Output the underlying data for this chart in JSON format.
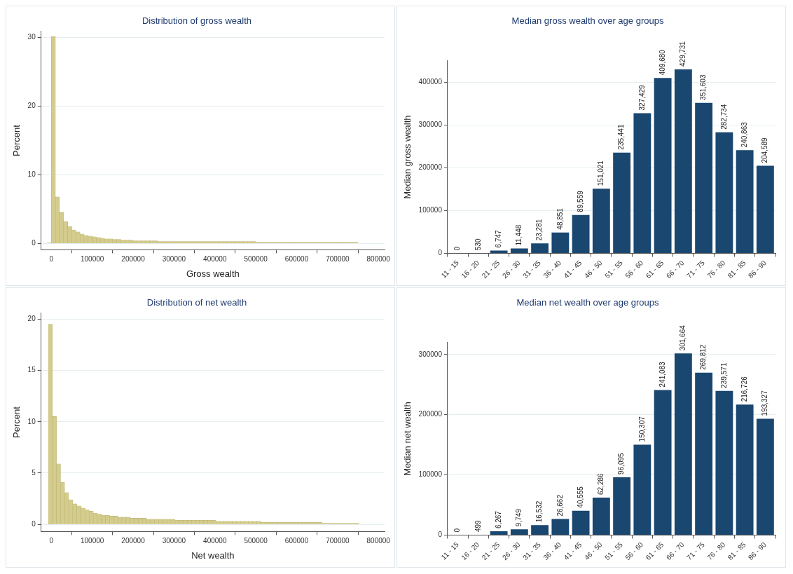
{
  "chart_data": [
    {
      "type": "histogram",
      "title": "Distribution of gross wealth",
      "xlabel": "Gross wealth",
      "ylabel": "Percent",
      "color": "#d4cc8c",
      "bins": [
        -10000,
        0,
        10000,
        20000,
        30000,
        40000,
        50000,
        60000,
        70000,
        80000,
        90000,
        100000,
        110000,
        120000,
        130000,
        140000,
        150000,
        160000,
        170000,
        180000,
        190000,
        200000,
        210000,
        220000,
        230000,
        240000,
        250000,
        260000,
        270000,
        280000,
        290000,
        300000,
        310000,
        320000,
        330000,
        340000,
        350000,
        360000,
        370000,
        380000,
        390000,
        400000,
        410000,
        420000,
        430000,
        440000,
        450000,
        460000,
        470000,
        480000,
        490000,
        500000,
        510000,
        520000,
        530000,
        540000,
        550000,
        560000,
        570000,
        580000,
        590000,
        600000,
        610000,
        620000,
        630000,
        640000,
        650000,
        660000,
        670000,
        680000,
        690000,
        700000,
        710000,
        720000,
        730000,
        740000,
        750000
      ],
      "values": [
        0.1,
        30.1,
        6.8,
        4.5,
        3.2,
        2.5,
        2.0,
        1.7,
        1.4,
        1.2,
        1.1,
        1.0,
        0.9,
        0.8,
        0.7,
        0.7,
        0.6,
        0.6,
        0.5,
        0.5,
        0.5,
        0.4,
        0.4,
        0.4,
        0.4,
        0.4,
        0.4,
        0.3,
        0.3,
        0.3,
        0.3,
        0.3,
        0.3,
        0.3,
        0.3,
        0.3,
        0.3,
        0.3,
        0.3,
        0.3,
        0.3,
        0.3,
        0.3,
        0.3,
        0.3,
        0.3,
        0.3,
        0.3,
        0.3,
        0.3,
        0.3,
        0.2,
        0.2,
        0.2,
        0.2,
        0.2,
        0.2,
        0.2,
        0.2,
        0.2,
        0.2,
        0.2,
        0.2,
        0.2,
        0.2,
        0.2,
        0.2,
        0.2,
        0.2,
        0.2,
        0.2,
        0.2,
        0.2,
        0.2,
        0.2,
        0.2
      ],
      "xlim": [
        -25000,
        815000
      ],
      "xticks": [
        0,
        100000,
        200000,
        300000,
        400000,
        500000,
        600000,
        700000,
        800000
      ],
      "ylim": [
        -0.9,
        30.9
      ],
      "yticks": [
        0,
        10,
        20,
        30
      ],
      "grid": "y"
    },
    {
      "type": "bar",
      "title": "Median gross wealth over age groups",
      "ylabel": "Median gross wealth",
      "color": "#1a476f",
      "categories": [
        "11 - 15",
        "16 - 20",
        "21 - 25",
        "26 - 30",
        "31 - 35",
        "36 - 40",
        "41 - 45",
        "46 - 50",
        "51 - 55",
        "56 - 60",
        "61 - 65",
        "66 - 70",
        "71 - 75",
        "76 - 80",
        "81 - 85",
        "86 - 90"
      ],
      "values": [
        0,
        530,
        6747,
        11448,
        23281,
        48851,
        89559,
        151021,
        235441,
        327429,
        409680,
        429731,
        351603,
        282734,
        240863,
        204589
      ],
      "value_labels": [
        "0",
        "530",
        "6,747",
        "11,448",
        "23,281",
        "48,851",
        "89,559",
        "151,021",
        "235,441",
        "327,429",
        "409,680",
        "429,731",
        "351,603",
        "282,734",
        "240,863",
        "204,589"
      ],
      "ylim": [
        0,
        450000
      ],
      "yticks": [
        0,
        100000,
        200000,
        300000,
        400000
      ],
      "grid": "y"
    },
    {
      "type": "histogram",
      "title": "Distribution of net wealth",
      "xlabel": "Net wealth",
      "ylabel": "Percent",
      "color": "#d4cc8c",
      "bins": [
        -7500,
        2500,
        12500,
        22500,
        32500,
        42500,
        52500,
        62500,
        72500,
        82500,
        92500,
        102500,
        112500,
        122500,
        132500,
        142500,
        152500,
        162500,
        172500,
        182500,
        192500,
        202500,
        212500,
        222500,
        232500,
        242500,
        252500,
        262500,
        272500,
        282500,
        292500,
        302500,
        312500,
        322500,
        332500,
        342500,
        352500,
        362500,
        372500,
        382500,
        392500,
        402500,
        412500,
        422500,
        432500,
        442500,
        452500,
        462500,
        472500,
        482500,
        492500,
        502500,
        512500,
        522500,
        532500,
        542500,
        552500,
        562500,
        572500,
        582500,
        592500,
        602500,
        612500,
        622500,
        632500,
        642500,
        652500,
        662500,
        672500,
        682500,
        692500,
        702500,
        712500,
        722500,
        732500,
        742500,
        752500
      ],
      "values": [
        19.5,
        10.5,
        5.9,
        4.1,
        3.1,
        2.4,
        2.0,
        1.8,
        1.6,
        1.4,
        1.3,
        1.1,
        1.0,
        0.9,
        0.9,
        0.8,
        0.8,
        0.7,
        0.7,
        0.7,
        0.6,
        0.6,
        0.6,
        0.6,
        0.5,
        0.5,
        0.5,
        0.5,
        0.5,
        0.5,
        0.5,
        0.4,
        0.4,
        0.4,
        0.4,
        0.4,
        0.4,
        0.4,
        0.4,
        0.4,
        0.4,
        0.3,
        0.3,
        0.3,
        0.3,
        0.3,
        0.3,
        0.3,
        0.3,
        0.3,
        0.3,
        0.3,
        0.2,
        0.2,
        0.2,
        0.2,
        0.2,
        0.2,
        0.2,
        0.2,
        0.2,
        0.2,
        0.2,
        0.2,
        0.2,
        0.2,
        0.2,
        0.1,
        0.1,
        0.1,
        0.1,
        0.1,
        0.1,
        0.1,
        0.1,
        0.1
      ],
      "xlim": [
        -25000,
        815000
      ],
      "xticks": [
        0,
        100000,
        200000,
        300000,
        400000,
        500000,
        600000,
        700000,
        800000
      ],
      "ylim": [
        -0.7,
        20.6
      ],
      "yticks": [
        0,
        5,
        10,
        15,
        20
      ],
      "grid": "y"
    },
    {
      "type": "bar",
      "title": "Median net wealth over age groups",
      "ylabel": "Median net wealth",
      "color": "#1a476f",
      "categories": [
        "11 - 15",
        "16 - 20",
        "21 - 25",
        "26 - 30",
        "31 - 35",
        "36 - 40",
        "41 - 45",
        "46 - 50",
        "51 - 55",
        "56 - 60",
        "61 - 65",
        "66 - 70",
        "71 - 75",
        "76 - 80",
        "81 - 85",
        "86 - 90"
      ],
      "values": [
        0,
        499,
        6267,
        9749,
        16532,
        26662,
        40555,
        62286,
        96095,
        150307,
        241083,
        301664,
        269812,
        239571,
        216726,
        193327
      ],
      "value_labels": [
        "0",
        "499",
        "6,267",
        "9,749",
        "16,532",
        "26,662",
        "40,555",
        "62,286",
        "96,095",
        "150,307",
        "241,083",
        "301,664",
        "269,812",
        "239,571",
        "216,726",
        "193,327"
      ],
      "ylim": [
        0,
        320000
      ],
      "yticks": [
        0,
        100000,
        200000,
        300000
      ],
      "grid": "y"
    }
  ]
}
